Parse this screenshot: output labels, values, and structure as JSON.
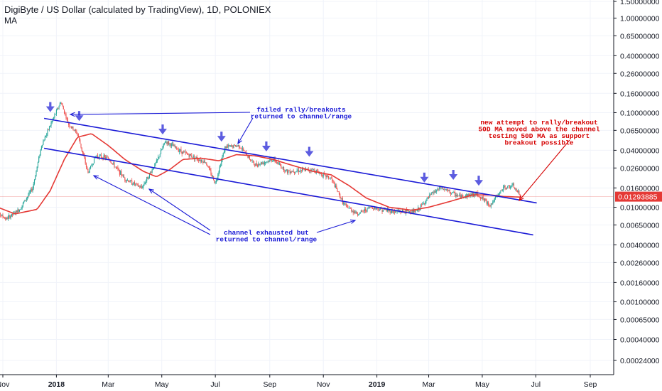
{
  "header": {
    "title": "DigiByte / US Dollar (calculated by TradingView), 1D, POLONIEX",
    "indicator": "MA"
  },
  "colors": {
    "up": "#26a69a",
    "down": "#ef5350",
    "ma": "#e53935",
    "channel": "#1a1ad6",
    "arrow": "#5c5ce0",
    "note_blue": "#1a1ad6",
    "note_red": "#d50000",
    "current_price": "#e53935",
    "axis": "#131722"
  },
  "chart_data": {
    "type": "candlestick",
    "y_scale": "log",
    "ylim": [
      0.00018,
      1.5
    ],
    "y_ticks": [
      "1.50000000",
      "1.00000000",
      "0.65000000",
      "0.40000000",
      "0.26000000",
      "0.16000000",
      "0.10000000",
      "0.06500000",
      "0.04000000",
      "0.02600000",
      "0.01600000",
      "0.01000000",
      "0.00650000",
      "0.00400000",
      "0.00260000",
      "0.00160000",
      "0.00100000",
      "0.00065000",
      "0.00040000",
      "0.00024000"
    ],
    "y_tick_values": [
      1.5,
      1.0,
      0.65,
      0.4,
      0.26,
      0.16,
      0.1,
      0.065,
      0.04,
      0.026,
      0.016,
      0.01,
      0.0065,
      0.004,
      0.0026,
      0.0016,
      0.001,
      0.00065,
      0.0004,
      0.00024
    ],
    "x_ticks": [
      {
        "label": "Nov",
        "bold": false
      },
      {
        "label": "2018",
        "bold": true
      },
      {
        "label": "Mar",
        "bold": false
      },
      {
        "label": "May",
        "bold": false
      },
      {
        "label": "Jul",
        "bold": false
      },
      {
        "label": "Sep",
        "bold": false
      },
      {
        "label": "Nov",
        "bold": false
      },
      {
        "label": "2019",
        "bold": true
      },
      {
        "label": "Mar",
        "bold": false
      },
      {
        "label": "May",
        "bold": false
      },
      {
        "label": "Jul",
        "bold": false
      },
      {
        "label": "Sep",
        "bold": false
      }
    ],
    "x_tick_dates": [
      "2017-11-01",
      "2018-01-01",
      "2018-03-01",
      "2018-05-01",
      "2018-07-01",
      "2018-09-01",
      "2018-11-01",
      "2019-01-01",
      "2019-03-01",
      "2019-05-01",
      "2019-07-01",
      "2019-09-01"
    ],
    "current_price": "0.01293885",
    "price_path": [
      [
        "2017-10-20",
        0.0095
      ],
      [
        "2017-11-05",
        0.0075
      ],
      [
        "2017-11-20",
        0.0095
      ],
      [
        "2017-12-05",
        0.016
      ],
      [
        "2017-12-15",
        0.045
      ],
      [
        "2017-12-28",
        0.085
      ],
      [
        "2018-01-06",
        0.13
      ],
      [
        "2018-01-15",
        0.075
      ],
      [
        "2018-01-25",
        0.06
      ],
      [
        "2018-02-06",
        0.023
      ],
      [
        "2018-02-15",
        0.035
      ],
      [
        "2018-03-01",
        0.033
      ],
      [
        "2018-03-20",
        0.02
      ],
      [
        "2018-04-08",
        0.016
      ],
      [
        "2018-04-25",
        0.03
      ],
      [
        "2018-05-05",
        0.05
      ],
      [
        "2018-05-25",
        0.038
      ],
      [
        "2018-06-20",
        0.03
      ],
      [
        "2018-07-01",
        0.018
      ],
      [
        "2018-07-12",
        0.043
      ],
      [
        "2018-07-28",
        0.045
      ],
      [
        "2018-08-15",
        0.028
      ],
      [
        "2018-09-05",
        0.032
      ],
      [
        "2018-09-20",
        0.024
      ],
      [
        "2018-10-20",
        0.025
      ],
      [
        "2018-11-10",
        0.02
      ],
      [
        "2018-11-25",
        0.0105
      ],
      [
        "2018-12-10",
        0.0085
      ],
      [
        "2018-12-25",
        0.01
      ],
      [
        "2019-01-20",
        0.009
      ],
      [
        "2019-02-15",
        0.009
      ],
      [
        "2019-03-05",
        0.014
      ],
      [
        "2019-03-15",
        0.016
      ],
      [
        "2019-04-05",
        0.013
      ],
      [
        "2019-04-25",
        0.0138
      ],
      [
        "2019-05-10",
        0.0105
      ],
      [
        "2019-05-25",
        0.016
      ],
      [
        "2019-06-05",
        0.0168
      ],
      [
        "2019-06-14",
        0.0129
      ]
    ],
    "ma_path": [
      [
        "2017-10-20",
        0.0105
      ],
      [
        "2017-11-15",
        0.0085
      ],
      [
        "2017-12-10",
        0.0095
      ],
      [
        "2017-12-25",
        0.015
      ],
      [
        "2018-01-10",
        0.032
      ],
      [
        "2018-01-25",
        0.055
      ],
      [
        "2018-02-10",
        0.06
      ],
      [
        "2018-03-01",
        0.045
      ],
      [
        "2018-03-20",
        0.032
      ],
      [
        "2018-04-10",
        0.024
      ],
      [
        "2018-04-25",
        0.021
      ],
      [
        "2018-05-10",
        0.025
      ],
      [
        "2018-05-25",
        0.032
      ],
      [
        "2018-06-15",
        0.033
      ],
      [
        "2018-07-05",
        0.031
      ],
      [
        "2018-07-25",
        0.036
      ],
      [
        "2018-08-15",
        0.035
      ],
      [
        "2018-09-05",
        0.032
      ],
      [
        "2018-09-25",
        0.028
      ],
      [
        "2018-10-20",
        0.024
      ],
      [
        "2018-11-10",
        0.022
      ],
      [
        "2018-11-30",
        0.017
      ],
      [
        "2018-12-20",
        0.0125
      ],
      [
        "2019-01-15",
        0.01
      ],
      [
        "2019-02-10",
        0.0093
      ],
      [
        "2019-03-01",
        0.01
      ],
      [
        "2019-03-25",
        0.0115
      ],
      [
        "2019-04-20",
        0.0135
      ],
      [
        "2019-05-10",
        0.0135
      ],
      [
        "2019-05-25",
        0.013
      ],
      [
        "2019-06-14",
        0.0128
      ]
    ],
    "channel_lines": [
      {
        "from": [
          "2017-12-18",
          0.087
        ],
        "to": [
          "2019-07-02",
          0.0111
        ]
      },
      {
        "from": [
          "2017-12-18",
          0.042
        ],
        "to": [
          "2019-06-28",
          0.0051
        ]
      }
    ],
    "arrow_markers": [
      {
        "date": "2017-12-25",
        "price": 0.107
      },
      {
        "date": "2018-01-27",
        "price": 0.086
      },
      {
        "date": "2018-05-02",
        "price": 0.062
      },
      {
        "date": "2018-07-08",
        "price": 0.052
      },
      {
        "date": "2018-08-28",
        "price": 0.041
      },
      {
        "date": "2018-10-16",
        "price": 0.036
      },
      {
        "date": "2019-02-24",
        "price": 0.0192
      },
      {
        "date": "2019-03-29",
        "price": 0.0205
      },
      {
        "date": "2019-04-27",
        "price": 0.0178
      }
    ],
    "annotations": [
      {
        "lines": [
          "failed rally/breakouts",
          "returned to channel/range"
        ],
        "color": "blue"
      },
      {
        "lines": [
          "channel exhausted but",
          "returned to channel/range"
        ],
        "color": "blue"
      },
      {
        "lines": [
          "new attempt to rally/breakout",
          "50D MA moved above the channel",
          "testing 50D MA as support",
          "breakout possible"
        ],
        "color": "red"
      }
    ]
  }
}
